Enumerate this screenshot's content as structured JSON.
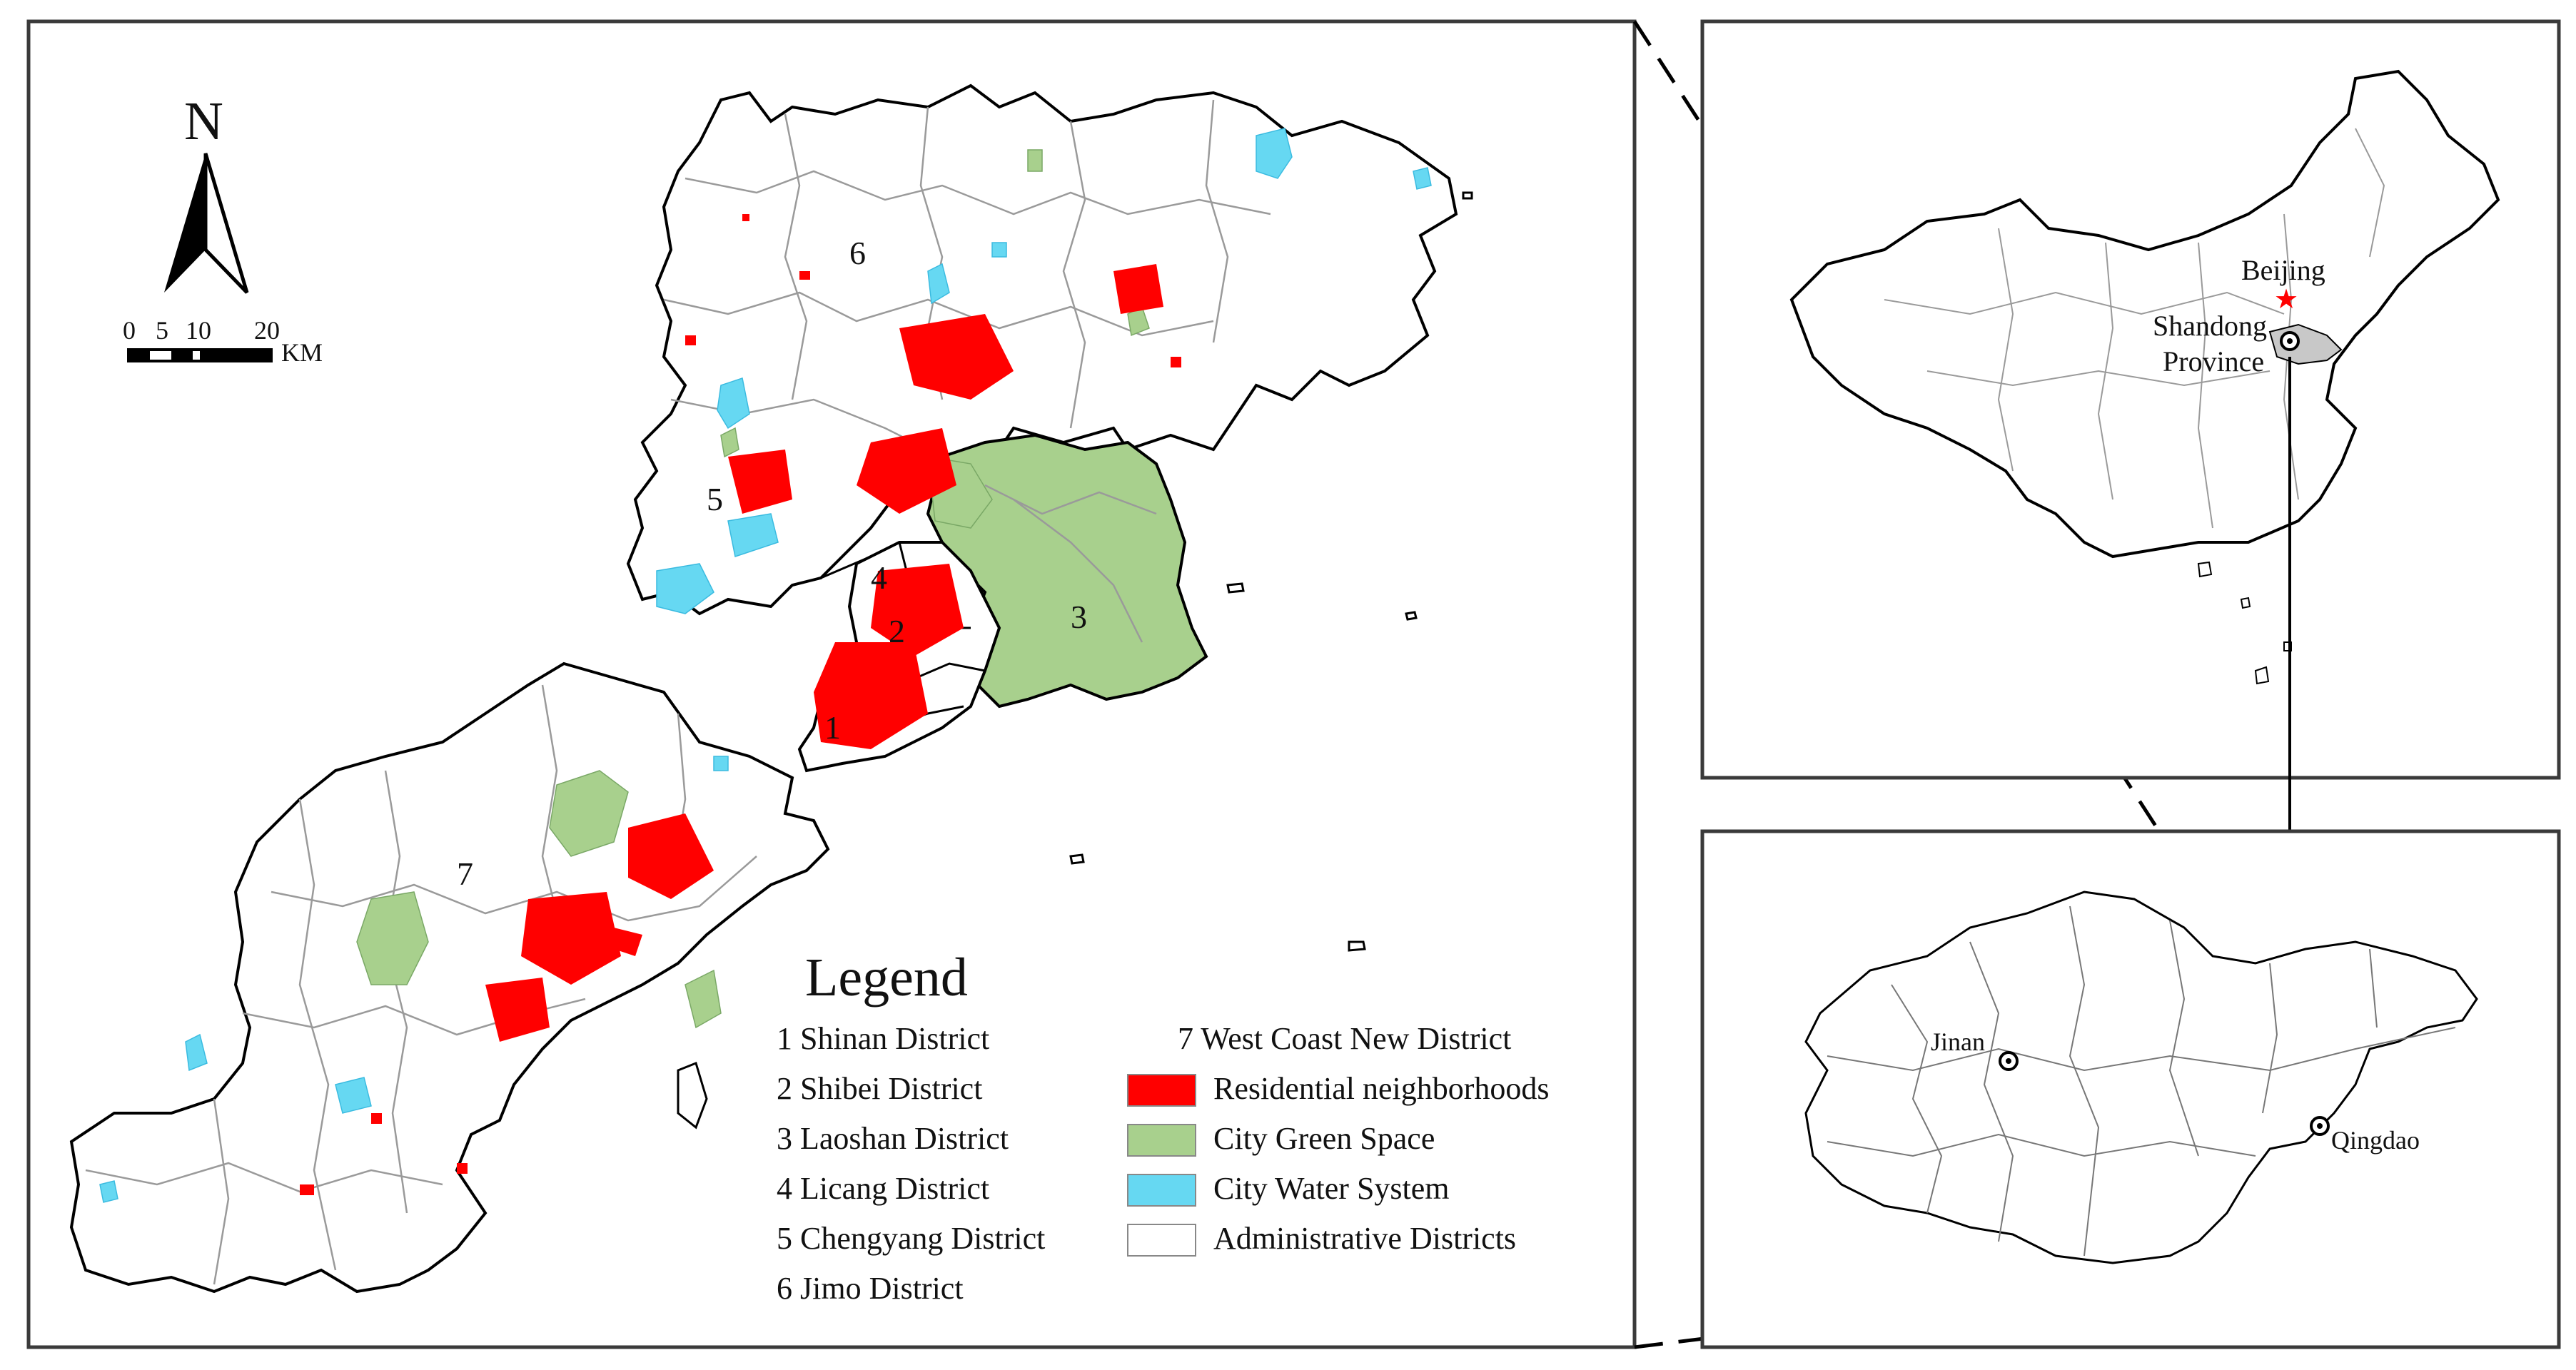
{
  "north_arrow": {
    "letter": "N"
  },
  "scale_bar": {
    "ticks": [
      "0",
      "5",
      "10",
      "20"
    ],
    "unit": "KM"
  },
  "district_numbers": [
    "1",
    "2",
    "3",
    "4",
    "5",
    "6",
    "7"
  ],
  "legend": {
    "title": "Legend",
    "districts": [
      "1 Shinan District",
      "2 Shibei District",
      "3 Laoshan District",
      "4 Licang District",
      "5 Chengyang District",
      "6 Jimo District",
      "7 West Coast New District"
    ],
    "layers": [
      {
        "label": "Residential neighborhoods",
        "color": "#ff0000"
      },
      {
        "label": "City Green Space",
        "color": "#a8d08d"
      },
      {
        "label": "City Water System",
        "color": "#66d8f2"
      },
      {
        "label": "Administrative Districts",
        "color": "#ffffff"
      }
    ]
  },
  "china_inset": {
    "capital": "Beijing",
    "province_line1": "Shandong",
    "province_line2": "Province"
  },
  "shandong_inset": {
    "cities": [
      "Jinan",
      "Qingdao"
    ]
  },
  "colors": {
    "residential": "#ff0000",
    "green": "#a8d08d",
    "water": "#66d8f2",
    "outline": "#000000",
    "subdistrict": "#9a9a9a",
    "highlight": "#c8c8c8"
  }
}
